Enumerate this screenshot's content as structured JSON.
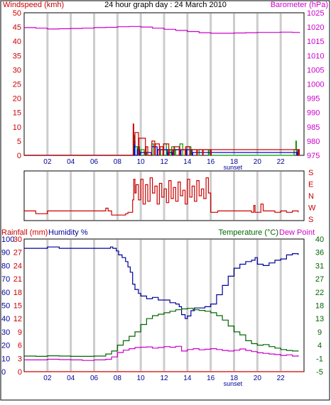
{
  "chart_data": [
    {
      "type": "line",
      "title": "24 hour graph day : 24 March 2010",
      "ylabel_left": "Windspeed (kmh)",
      "ylabel_right": "Barometer (hPa)",
      "x_ticks": [
        "02",
        "04",
        "06",
        "08",
        "10",
        "12",
        "14",
        "16",
        "18",
        "20",
        "22"
      ],
      "x_ticks_hours": [
        2,
        4,
        6,
        8,
        10,
        12,
        14,
        16,
        18,
        20,
        22
      ],
      "sunset_label": "sunset",
      "sunset_hour": 17.9,
      "xlim": [
        0,
        24
      ],
      "ylim_left": [
        0,
        50
      ],
      "ylim_right": [
        975,
        1025
      ],
      "y_ticks_left": [
        0,
        5,
        10,
        15,
        20,
        25,
        30,
        35,
        40,
        45,
        50
      ],
      "y_ticks_right": [
        975,
        980,
        985,
        990,
        995,
        1000,
        1005,
        1010,
        1015,
        1020,
        1025
      ],
      "gridlines_x": [
        2,
        4,
        6,
        8,
        10,
        12,
        14,
        16,
        18,
        20,
        22
      ],
      "series": [
        {
          "axis": "right",
          "color": "#cc00cc",
          "x": [
            0,
            1,
            2,
            3,
            4,
            5,
            6,
            7,
            8,
            9,
            10,
            11,
            12,
            13,
            14,
            15,
            16,
            17,
            18,
            19,
            20,
            21,
            22,
            23,
            23.6
          ],
          "values": [
            1019.8,
            1019.6,
            1019.3,
            1019.4,
            1019.5,
            1019.6,
            1019.8,
            1019.9,
            1020.1,
            1020.2,
            1020.0,
            1019.6,
            1019.2,
            1018.8,
            1018.4,
            1018.0,
            1017.8,
            1017.8,
            1017.9,
            1018.0,
            1018.1,
            1018.1,
            1018.2,
            1018.1,
            1017.9
          ]
        },
        {
          "axis": "left",
          "color": "#009900",
          "x": [
            0,
            9.3,
            9.35,
            9.4,
            9.45,
            9.5,
            9.7,
            9.75,
            9.9,
            10.0,
            10.3,
            10.35,
            10.5,
            10.9,
            10.95,
            11.1,
            11.4,
            11.45,
            11.7,
            11.9,
            11.95,
            12.2,
            12.25,
            12.6,
            12.65,
            12.9,
            13.0,
            13.3,
            13.35,
            13.6,
            13.9,
            13.95,
            14.3,
            14.35,
            14.8,
            14.9,
            15.0,
            15.3,
            15.35,
            15.8,
            15.9,
            16.0,
            16.1,
            23.1,
            23.15,
            23.3,
            23.35,
            23.5,
            23.55,
            23.6
          ],
          "values": [
            0,
            0,
            7,
            0,
            7,
            3,
            0,
            3,
            0,
            2,
            0,
            1,
            0,
            0,
            4,
            0,
            0,
            2,
            0,
            0,
            4,
            0,
            2,
            0,
            3,
            0,
            2,
            0,
            4,
            0,
            0,
            3,
            0,
            2,
            0,
            0,
            2,
            0,
            2,
            0,
            2,
            0,
            0,
            0,
            2,
            5,
            0,
            2,
            0,
            0
          ]
        },
        {
          "axis": "left",
          "color": "#0000cc",
          "x": [
            0,
            9.4,
            9.45,
            9.5,
            9.65,
            9.7,
            9.9,
            9.95,
            10.4,
            10.45,
            10.9,
            10.95,
            11.4,
            11.45,
            11.9,
            11.95,
            12.3,
            12.35,
            12.7,
            12.75,
            13.4,
            13.45,
            13.9,
            13.95,
            14.4,
            14.45,
            23.4,
            23.45,
            23.6
          ],
          "values": [
            0,
            0,
            5,
            0,
            0,
            2,
            0,
            1,
            0,
            1,
            0,
            3,
            0,
            2,
            0,
            2,
            0,
            1,
            0,
            2,
            0,
            2,
            0,
            2,
            0,
            1,
            0,
            2,
            0
          ]
        },
        {
          "axis": "left",
          "color": "#cc0000",
          "x": [
            0,
            9.3,
            9.35,
            9.4,
            9.5,
            9.8,
            9.85,
            10.4,
            10.45,
            10.6,
            10.9,
            10.95,
            11.2,
            11.25,
            11.6,
            11.65,
            11.9,
            11.95,
            12.4,
            12.45,
            12.8,
            12.85,
            13.3,
            13.35,
            13.8,
            13.85,
            14.2,
            14.25,
            14.8,
            14.85,
            15.3,
            15.35,
            16.0,
            16.05,
            23.5,
            23.55,
            23.6
          ],
          "values": [
            0,
            0,
            11,
            4,
            8,
            0,
            6,
            0,
            3,
            0,
            0,
            5,
            0,
            4,
            0,
            3,
            0,
            4,
            0,
            2,
            0,
            3,
            0,
            2,
            0,
            3,
            0,
            2,
            0,
            2,
            0,
            2,
            0,
            2,
            0,
            2,
            0
          ]
        }
      ]
    },
    {
      "type": "line",
      "title": "",
      "ylabel_right_ticks": [
        "S",
        "E",
        "N",
        "W",
        "S"
      ],
      "y_ticks_values": [
        0,
        90,
        180,
        270,
        360
      ],
      "ylim": [
        0,
        360
      ],
      "xlim": [
        0,
        24
      ],
      "gridlines_x": [
        2,
        4,
        6,
        8,
        10,
        12,
        14,
        16,
        18,
        20,
        22
      ],
      "series": [
        {
          "name": "Wind direction",
          "color": "#cc0000",
          "x": [
            0,
            0.5,
            1.0,
            1.5,
            2.0,
            4.0,
            6.0,
            7.0,
            7.2,
            7.5,
            8.5,
            8.7,
            8.9,
            9.2,
            9.3,
            9.4,
            9.5,
            9.6,
            9.8,
            10.0,
            10.2,
            10.4,
            10.6,
            10.8,
            11.0,
            11.2,
            11.4,
            11.6,
            11.8,
            12.0,
            12.2,
            12.4,
            12.6,
            12.8,
            13.0,
            13.2,
            13.4,
            13.6,
            13.8,
            14.0,
            14.2,
            14.4,
            14.6,
            14.8,
            15.0,
            15.2,
            15.4,
            15.6,
            15.8,
            16.0,
            16.3,
            16.6,
            16.8,
            17.0,
            18.0,
            19.0,
            19.5,
            19.7,
            19.8,
            20.0,
            20.3,
            20.5,
            21.0,
            21.5,
            22.0,
            22.5,
            23.0,
            23.5
          ],
          "values": [
            70,
            70,
            50,
            50,
            70,
            70,
            70,
            90,
            70,
            40,
            40,
            50,
            60,
            60,
            150,
            300,
            200,
            260,
            150,
            300,
            120,
            260,
            140,
            310,
            200,
            250,
            120,
            270,
            170,
            230,
            130,
            290,
            160,
            240,
            140,
            280,
            180,
            220,
            120,
            300,
            170,
            250,
            140,
            290,
            180,
            230,
            160,
            310,
            200,
            60,
            60,
            70,
            70,
            70,
            70,
            70,
            60,
            110,
            60,
            60,
            120,
            70,
            70,
            60,
            70,
            60,
            70,
            60
          ]
        }
      ]
    },
    {
      "type": "line",
      "title": "",
      "ylabel_left_1": "Rainfall (mm)",
      "ylabel_left_2": "Humidity %",
      "ylabel_right": "Temperature (°C)",
      "ylabel_right_2": "Dew Point",
      "x_ticks": [
        "02",
        "04",
        "06",
        "08",
        "10",
        "12",
        "14",
        "16",
        "18",
        "20",
        "22"
      ],
      "x_ticks_hours": [
        2,
        4,
        6,
        8,
        10,
        12,
        14,
        16,
        18,
        20,
        22
      ],
      "sunset_label": "sunset",
      "sunset_hour": 17.9,
      "xlim": [
        0,
        24
      ],
      "y_ticks_humidity": [
        0,
        10,
        20,
        30,
        40,
        50,
        60,
        70,
        80,
        90,
        100
      ],
      "ylim_humidity": [
        0,
        100
      ],
      "y_ticks_rain": [
        0,
        3,
        6,
        9,
        12,
        15,
        18,
        21,
        24,
        27,
        30
      ],
      "ylim_rain": [
        0,
        30
      ],
      "y_ticks_temp": [
        -5,
        -1,
        4,
        9,
        13,
        18,
        22,
        27,
        31,
        36,
        40
      ],
      "ylim_temp": [
        -5,
        40
      ],
      "series": [
        {
          "name": "Humidity %",
          "axis": "humidity",
          "color": "#000099",
          "x": [
            0,
            1,
            2,
            3,
            4,
            5,
            6,
            7,
            7.4,
            7.6,
            7.9,
            8.1,
            8.4,
            8.7,
            8.9,
            9.1,
            9.3,
            9.5,
            9.8,
            10.0,
            10.5,
            11.0,
            11.5,
            12.0,
            12.5,
            13.0,
            13.3,
            13.5,
            13.8,
            14.0,
            14.3,
            14.6,
            15.0,
            15.5,
            16.0,
            16.5,
            17.0,
            17.5,
            18.0,
            18.5,
            19.0,
            19.5,
            19.8,
            20.0,
            20.5,
            21.0,
            21.5,
            22.0,
            22.5,
            23.0,
            23.5
          ],
          "values": [
            93,
            93,
            94,
            93,
            93,
            93,
            93,
            93,
            94,
            93,
            91,
            88,
            86,
            83,
            79,
            75,
            66,
            62,
            59,
            57,
            55,
            56,
            54,
            54,
            52,
            51,
            49,
            43,
            40,
            42,
            46,
            48,
            48,
            49,
            51,
            58,
            65,
            72,
            78,
            81,
            83,
            84,
            86,
            81,
            80,
            82,
            84,
            85,
            88,
            89,
            88
          ]
        },
        {
          "name": "Temperature",
          "axis": "temp",
          "color": "#006600",
          "x": [
            0,
            1,
            2,
            3,
            4,
            5,
            6,
            7,
            7.5,
            8,
            8.5,
            9,
            9.5,
            10,
            10.5,
            11,
            11.5,
            12,
            12.5,
            13,
            13.5,
            14,
            14.5,
            15,
            15.5,
            16,
            16.5,
            17,
            17.5,
            18,
            18.5,
            19,
            19.5,
            20,
            20.5,
            21,
            21.5,
            22,
            22.5,
            23,
            23.5
          ],
          "values": [
            0.3,
            0.2,
            0.4,
            0.3,
            0.2,
            0.2,
            0.3,
            1.0,
            2.0,
            4.0,
            5.5,
            7.0,
            8.5,
            11.0,
            13.0,
            14.0,
            14.5,
            15.0,
            15.5,
            16.0,
            16.3,
            16.5,
            16.0,
            15.8,
            15.5,
            15.0,
            14.0,
            12.5,
            10.5,
            8.5,
            7.5,
            5.5,
            4.5,
            4.0,
            4.2,
            3.5,
            3.0,
            2.5,
            2.2,
            2.0,
            2.2
          ]
        },
        {
          "name": "Dew Point",
          "axis": "temp",
          "color": "#cc00cc",
          "x": [
            0,
            1,
            2,
            3,
            4,
            5,
            6,
            7,
            7.5,
            8,
            8.5,
            9,
            9.5,
            10,
            10.5,
            11,
            11.5,
            12,
            12.5,
            13,
            13.5,
            14,
            14.5,
            15,
            15.5,
            16,
            16.5,
            17,
            17.5,
            18,
            18.5,
            19,
            19.5,
            20,
            20.5,
            21,
            21.5,
            22,
            22.5,
            23,
            23.5
          ],
          "values": [
            -1.0,
            -1.0,
            -0.8,
            -0.9,
            -1.0,
            -1.2,
            -1.0,
            -0.8,
            0.0,
            1.5,
            2.3,
            2.8,
            3.2,
            3.3,
            3.4,
            3.0,
            3.2,
            3.5,
            3.3,
            3.6,
            2.0,
            2.5,
            2.8,
            2.4,
            2.6,
            2.8,
            2.5,
            2.2,
            2.0,
            2.3,
            2.7,
            2.2,
            1.8,
            1.4,
            1.2,
            1.0,
            0.8,
            0.5,
            0.7,
            0.3,
            0.6
          ]
        },
        {
          "name": "Rainfall",
          "axis": "rain",
          "color": "#cc0000",
          "x": [
            0,
            24
          ],
          "values": [
            0,
            0
          ]
        }
      ]
    }
  ]
}
